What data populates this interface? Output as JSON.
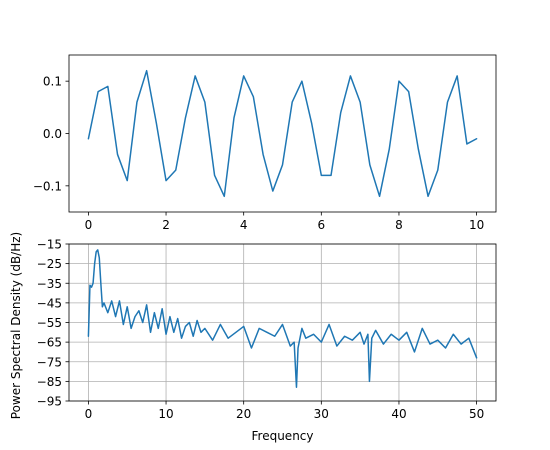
{
  "chart_data": [
    {
      "type": "line",
      "title": "",
      "xlabel": "",
      "ylabel": "",
      "xlim": [
        -0.5,
        10.5
      ],
      "ylim": [
        -0.15,
        0.15
      ],
      "xticks": [
        0,
        2,
        4,
        6,
        8,
        10
      ],
      "xtick_labels": [
        "0",
        "2",
        "4",
        "6",
        "8",
        "10"
      ],
      "yticks": [
        0.1,
        0.0,
        -0.1
      ],
      "ytick_labels": [
        "0.1",
        "0.0",
        "−0.1"
      ],
      "grid": false,
      "series": [
        {
          "color": "#1f77b4",
          "x": [
            0,
            0.25,
            0.5,
            0.75,
            1.0,
            1.25,
            1.5,
            1.75,
            2.0,
            2.25,
            2.5,
            2.75,
            3.0,
            3.25,
            3.5,
            3.75,
            4.0,
            4.25,
            4.5,
            4.75,
            5.0,
            5.25,
            5.5,
            5.75,
            6.0,
            6.25,
            6.5,
            6.75,
            7.0,
            7.25,
            7.5,
            7.75,
            8.0,
            8.25,
            8.5,
            8.75,
            9.0,
            9.25,
            9.5,
            9.75,
            10.0
          ],
          "y": [
            -0.01,
            0.08,
            0.09,
            -0.04,
            -0.09,
            0.06,
            0.12,
            0.02,
            -0.09,
            -0.07,
            0.03,
            0.11,
            0.06,
            -0.08,
            -0.12,
            0.03,
            0.11,
            0.07,
            -0.04,
            -0.11,
            -0.06,
            0.06,
            0.1,
            0.02,
            -0.08,
            -0.08,
            0.04,
            0.11,
            0.06,
            -0.06,
            -0.12,
            -0.03,
            0.1,
            0.08,
            -0.03,
            -0.12,
            -0.07,
            0.06,
            0.11,
            -0.02,
            -0.01
          ]
        }
      ]
    },
    {
      "type": "line",
      "title": "",
      "xlabel": "Frequency",
      "ylabel": "Power Spectral Density (dB/Hz)",
      "xlim": [
        -2.5,
        52.5
      ],
      "ylim": [
        -95,
        -15
      ],
      "xticks": [
        0,
        10,
        20,
        30,
        40,
        50
      ],
      "xtick_labels": [
        "0",
        "10",
        "20",
        "30",
        "40",
        "50"
      ],
      "yticks": [
        -15,
        -25,
        -35,
        -45,
        -55,
        -65,
        -75,
        -85,
        -95
      ],
      "ytick_labels": [
        "−15",
        "−25",
        "−35",
        "−45",
        "−55",
        "−65",
        "−75",
        "−85",
        "−95"
      ],
      "grid": true,
      "series": [
        {
          "color": "#1f77b4",
          "x": [
            0,
            0.2,
            0.4,
            0.6,
            0.8,
            1.0,
            1.2,
            1.4,
            1.6,
            1.8,
            2.0,
            2.5,
            3.0,
            3.5,
            4.0,
            4.5,
            5.0,
            5.5,
            6.0,
            6.5,
            7.0,
            7.5,
            8.0,
            8.5,
            9.0,
            9.5,
            10.0,
            10.5,
            11.0,
            11.5,
            12.0,
            12.5,
            13.0,
            13.5,
            14.0,
            14.5,
            15.0,
            16.0,
            17.0,
            18.0,
            19.0,
            20.0,
            21.0,
            22.0,
            23.0,
            24.0,
            25.0,
            26.0,
            26.5,
            26.8,
            27.0,
            27.5,
            28.0,
            29.0,
            30.0,
            31.0,
            32.0,
            33.0,
            34.0,
            35.0,
            35.5,
            36.0,
            36.2,
            36.5,
            37.0,
            38.0,
            39.0,
            40.0,
            41.0,
            42.0,
            43.0,
            44.0,
            45.0,
            46.0,
            47.0,
            48.0,
            49.0,
            50.0
          ],
          "y": [
            -62,
            -36,
            -37,
            -35,
            -25,
            -19,
            -18,
            -22,
            -35,
            -47,
            -45,
            -50,
            -44,
            -52,
            -44,
            -56,
            -47,
            -58,
            -52,
            -49,
            -55,
            -46,
            -60,
            -50,
            -58,
            -48,
            -61,
            -52,
            -60,
            -53,
            -63,
            -57,
            -55,
            -62,
            -54,
            -60,
            -58,
            -64,
            -56,
            -63,
            -60,
            -57,
            -68,
            -58,
            -60,
            -62,
            -56,
            -67,
            -65,
            -88,
            -68,
            -58,
            -63,
            -61,
            -65,
            -56,
            -67,
            -62,
            -64,
            -60,
            -66,
            -61,
            -85,
            -63,
            -59,
            -66,
            -61,
            -64,
            -60,
            -70,
            -58,
            -66,
            -64,
            -68,
            -61,
            -66,
            -63,
            -73
          ]
        }
      ]
    }
  ]
}
